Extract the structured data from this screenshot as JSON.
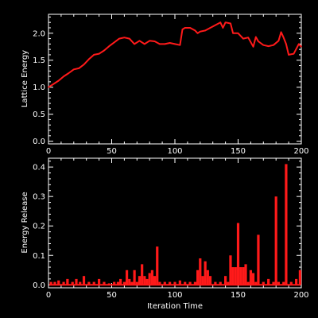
{
  "chart_data": [
    {
      "type": "line",
      "title": "",
      "xlabel": "",
      "ylabel": "Lattice Energy",
      "xlim": [
        0,
        200
      ],
      "ylim": [
        -0.05,
        2.35
      ],
      "xticks": [
        0,
        50,
        100,
        150,
        200
      ],
      "xtick_labels": [
        "0",
        "50",
        "100",
        "150",
        "200"
      ],
      "yticks": [
        0.0,
        0.5,
        1.0,
        1.5,
        2.0
      ],
      "ytick_labels": [
        "0.0",
        "0.5",
        "1.0",
        "1.5",
        "2.0"
      ],
      "color": "#ff1a1a",
      "series": [
        {
          "x": [
            0,
            4,
            8,
            12,
            16,
            20,
            24,
            28,
            32,
            36,
            40,
            44,
            48,
            52,
            56,
            60,
            64,
            68,
            72,
            76,
            80,
            84,
            88,
            92,
            96,
            100,
            104,
            106,
            108,
            112,
            116,
            118,
            120,
            124,
            128,
            132,
            136,
            138,
            140,
            144,
            146,
            150,
            154,
            158,
            162,
            164,
            166,
            170,
            174,
            178,
            182,
            184,
            186,
            188,
            190,
            194,
            198,
            200
          ],
          "y": [
            1.0,
            1.06,
            1.12,
            1.2,
            1.26,
            1.33,
            1.35,
            1.42,
            1.52,
            1.6,
            1.62,
            1.68,
            1.76,
            1.83,
            1.9,
            1.92,
            1.9,
            1.8,
            1.86,
            1.8,
            1.86,
            1.85,
            1.8,
            1.8,
            1.82,
            1.8,
            1.78,
            2.07,
            2.1,
            2.1,
            2.05,
            2.0,
            2.03,
            2.05,
            2.1,
            2.15,
            2.2,
            2.1,
            2.2,
            2.18,
            2.0,
            2.0,
            1.9,
            1.92,
            1.75,
            1.93,
            1.85,
            1.78,
            1.76,
            1.78,
            1.86,
            2.02,
            1.92,
            1.8,
            1.6,
            1.62,
            1.8,
            1.75
          ]
        }
      ]
    },
    {
      "type": "bar",
      "title": "",
      "xlabel": "Iteration Time",
      "ylabel": "Energy Release",
      "xlim": [
        0,
        200
      ],
      "ylim": [
        -0.01,
        0.43
      ],
      "xticks": [
        0,
        50,
        100,
        150,
        200
      ],
      "xtick_labels": [
        "0",
        "50",
        "100",
        "150",
        "200"
      ],
      "yticks": [
        0.0,
        0.1,
        0.2,
        0.3,
        0.4
      ],
      "ytick_labels": [
        "0.0",
        "0.1",
        "0.2",
        "0.3",
        "0.4"
      ],
      "color": "#ff1a1a",
      "series": [
        {
          "x": [
            2,
            5,
            8,
            12,
            15,
            19,
            22,
            25,
            28,
            32,
            36,
            40,
            44,
            48,
            52,
            55,
            57,
            60,
            62,
            64,
            66,
            68,
            70,
            72,
            74,
            76,
            78,
            80,
            82,
            84,
            86,
            88,
            92,
            96,
            100,
            104,
            108,
            112,
            116,
            118,
            120,
            122,
            124,
            126,
            128,
            132,
            136,
            140,
            142,
            144,
            146,
            148,
            150,
            152,
            154,
            156,
            158,
            160,
            162,
            164,
            166,
            170,
            174,
            178,
            180,
            182,
            186,
            188,
            192,
            196,
            199
          ],
          "y": [
            0.01,
            0.01,
            0.015,
            0.01,
            0.02,
            0.01,
            0.02,
            0.01,
            0.03,
            0.01,
            0.01,
            0.02,
            0.01,
            0.005,
            0.01,
            0.01,
            0.02,
            0.01,
            0.05,
            0.02,
            0.01,
            0.05,
            0.01,
            0.03,
            0.07,
            0.03,
            0.02,
            0.04,
            0.05,
            0.03,
            0.13,
            0.01,
            0.01,
            0.01,
            0.01,
            0.015,
            0.01,
            0.01,
            0.01,
            0.05,
            0.09,
            0.03,
            0.08,
            0.05,
            0.03,
            0.01,
            0.01,
            0.03,
            0.01,
            0.1,
            0.06,
            0.06,
            0.21,
            0.06,
            0.06,
            0.07,
            0.01,
            0.05,
            0.04,
            0.01,
            0.17,
            0.01,
            0.02,
            0.01,
            0.3,
            0.01,
            0.01,
            0.41,
            0.01,
            0.02,
            0.05
          ]
        }
      ]
    }
  ]
}
